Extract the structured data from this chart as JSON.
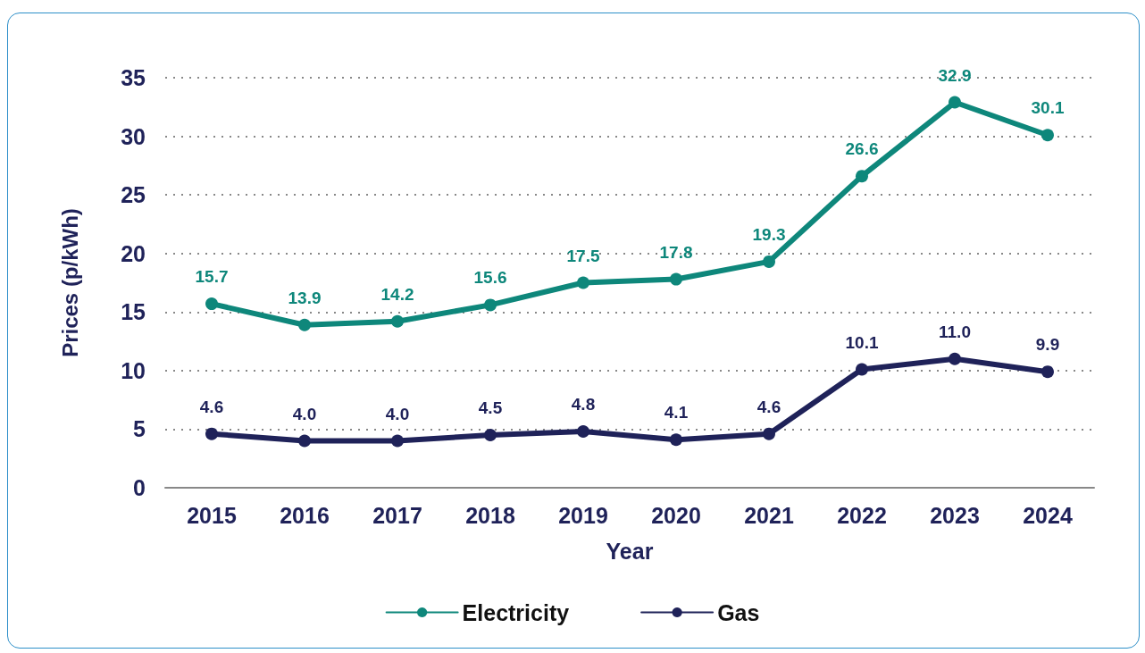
{
  "chart_data": {
    "type": "line",
    "xlabel": "Year",
    "ylabel": "Prices (p/kWh)",
    "categories": [
      "2015",
      "2016",
      "2017",
      "2018",
      "2019",
      "2020",
      "2021",
      "2022",
      "2023",
      "2024"
    ],
    "series": [
      {
        "name": "Electricity",
        "color": "#0e877b",
        "values": [
          15.7,
          13.9,
          14.2,
          15.6,
          17.5,
          17.8,
          19.3,
          26.6,
          32.9,
          30.1
        ],
        "value_labels": [
          "15.7",
          "13.9",
          "14.2",
          "15.6",
          "17.5",
          "17.8",
          "19.3",
          "26.6",
          "32.9",
          "30.1"
        ]
      },
      {
        "name": "Gas",
        "color": "#1f2259",
        "values": [
          4.6,
          4.0,
          4.0,
          4.5,
          4.8,
          4.1,
          4.6,
          10.1,
          11.0,
          9.9
        ],
        "value_labels": [
          "4.6",
          "4.0",
          "4.0",
          "4.5",
          "4.8",
          "4.1",
          "4.6",
          "10.1",
          "11.0",
          "9.9"
        ]
      }
    ],
    "ylim": [
      0,
      35
    ],
    "yticks": [
      0,
      5,
      10,
      15,
      20,
      25,
      30,
      35
    ],
    "grid": "y",
    "legend": "bottom",
    "marker": "circle",
    "line_style": "solid"
  }
}
